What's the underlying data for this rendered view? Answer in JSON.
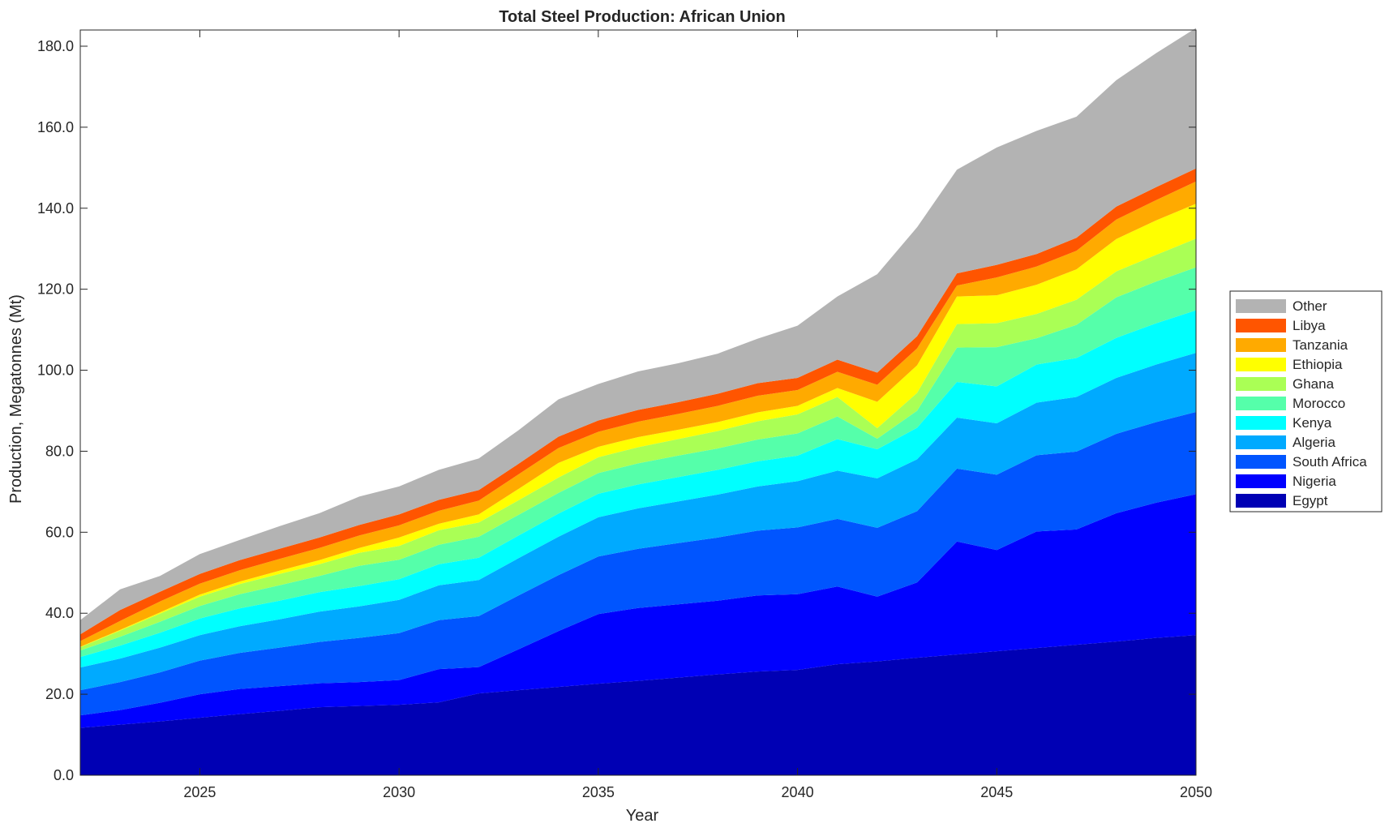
{
  "chart_data": {
    "type": "area",
    "stacked": true,
    "title": "Total Steel Production: African Union",
    "xlabel": "Year",
    "ylabel": "Production, Megatonnes (Mt)",
    "xlim": [
      2022,
      2050
    ],
    "ylim": [
      0,
      184
    ],
    "xticks": [
      2025,
      2030,
      2035,
      2040,
      2045,
      2050
    ],
    "yticks": [
      0,
      20,
      40,
      60,
      80,
      100,
      120,
      140,
      160,
      180
    ],
    "ytick_labels": [
      "0.0",
      "20.0",
      "40.0",
      "60.0",
      "80.0",
      "100.0",
      "120.0",
      "140.0",
      "160.0",
      "180.0"
    ],
    "legend_position": "outside-right",
    "x": [
      2022,
      2023,
      2024,
      2025,
      2026,
      2027,
      2028,
      2029,
      2030,
      2031,
      2032,
      2033,
      2034,
      2035,
      2036,
      2037,
      2038,
      2039,
      2040,
      2041,
      2042,
      2043,
      2044,
      2045,
      2046,
      2047,
      2048,
      2049,
      2050
    ],
    "series": [
      {
        "name": "Egypt",
        "color": "#0000B4",
        "values": [
          11.7,
          12.5,
          13.3,
          14.2,
          15.1,
          15.9,
          16.8,
          17.1,
          17.4,
          18.0,
          20.2,
          21.0,
          21.8,
          22.6,
          23.3,
          24.1,
          24.9,
          25.6,
          26.0,
          27.4,
          28.1,
          29.0,
          29.8,
          30.6,
          31.4,
          32.2,
          33.0,
          33.9,
          34.6
        ]
      },
      {
        "name": "Nigeria",
        "color": "#0000FF",
        "values": [
          3.1,
          3.6,
          4.6,
          5.8,
          6.2,
          6.1,
          5.9,
          5.9,
          6.1,
          8.2,
          6.5,
          10.1,
          13.8,
          17.2,
          18.0,
          18.1,
          18.2,
          18.8,
          18.7,
          19.2,
          16.0,
          18.6,
          27.9,
          25.0,
          28.8,
          28.5,
          31.7,
          33.4,
          34.8
        ]
      },
      {
        "name": "South Africa",
        "color": "#0055FF",
        "values": [
          6.2,
          6.9,
          7.5,
          8.3,
          8.9,
          9.5,
          10.2,
          10.9,
          11.6,
          12.1,
          12.6,
          13.3,
          13.8,
          14.2,
          14.6,
          15.1,
          15.6,
          16.0,
          16.5,
          16.7,
          17.0,
          17.6,
          18.0,
          18.6,
          18.8,
          19.2,
          19.6,
          19.9,
          20.3
        ]
      },
      {
        "name": "Algeria",
        "color": "#00AAFF",
        "values": [
          5.6,
          5.8,
          6.1,
          6.3,
          6.6,
          7.0,
          7.5,
          7.8,
          8.2,
          8.6,
          8.9,
          9.2,
          9.5,
          9.7,
          10.0,
          10.3,
          10.6,
          10.9,
          11.4,
          11.9,
          12.2,
          12.8,
          12.6,
          12.7,
          13.0,
          13.5,
          13.8,
          14.2,
          14.6
        ]
      },
      {
        "name": "Kenya",
        "color": "#00FFFF",
        "values": [
          2.6,
          3.2,
          3.7,
          4.1,
          4.4,
          4.6,
          4.8,
          5.0,
          5.1,
          5.2,
          5.5,
          5.6,
          5.7,
          5.8,
          5.9,
          6.0,
          6.1,
          6.2,
          6.3,
          7.8,
          7.2,
          7.8,
          8.8,
          9.1,
          9.4,
          9.6,
          9.9,
          10.2,
          10.5
        ]
      },
      {
        "name": "Morocco",
        "color": "#55FFAA",
        "values": [
          1.6,
          2.2,
          2.7,
          3.1,
          3.5,
          3.8,
          4.0,
          5.0,
          4.8,
          4.8,
          5.2,
          5.1,
          5.1,
          5.1,
          5.2,
          5.3,
          5.3,
          5.4,
          5.5,
          5.6,
          2.6,
          4.2,
          8.5,
          9.7,
          6.5,
          8.2,
          10.0,
          10.3,
          10.6
        ]
      },
      {
        "name": "Ghana",
        "color": "#AAFF55",
        "values": [
          0.8,
          1.5,
          2.0,
          2.3,
          2.5,
          2.8,
          2.9,
          3.2,
          3.4,
          3.6,
          3.5,
          3.6,
          3.8,
          3.9,
          4.0,
          4.1,
          4.3,
          4.5,
          4.7,
          4.8,
          2.6,
          4.4,
          5.8,
          5.9,
          6.0,
          6.2,
          6.4,
          6.6,
          7.1
        ]
      },
      {
        "name": "Ethiopia",
        "color": "#FFFF00",
        "values": [
          0.1,
          0.2,
          0.3,
          0.5,
          0.6,
          0.8,
          1.0,
          1.2,
          2.1,
          1.6,
          2.0,
          2.8,
          3.6,
          2.6,
          2.5,
          2.3,
          2.2,
          2.2,
          2.1,
          2.2,
          6.5,
          6.8,
          6.8,
          6.9,
          7.2,
          7.5,
          8.0,
          8.5,
          8.6
        ]
      },
      {
        "name": "Tanzania",
        "color": "#FFAA00",
        "values": [
          1.4,
          2.2,
          2.7,
          2.7,
          2.8,
          2.9,
          3.0,
          3.1,
          3.0,
          3.2,
          3.4,
          3.6,
          3.7,
          3.7,
          3.8,
          3.9,
          4.0,
          4.1,
          3.9,
          4.0,
          4.2,
          4.2,
          2.7,
          4.4,
          4.5,
          4.6,
          4.8,
          5.0,
          5.5
        ]
      },
      {
        "name": "Libya",
        "color": "#FF5500",
        "values": [
          1.7,
          2.7,
          2.4,
          2.4,
          2.5,
          2.5,
          2.6,
          2.6,
          2.7,
          2.7,
          2.6,
          2.6,
          2.8,
          2.8,
          2.9,
          2.9,
          3.0,
          3.1,
          3.0,
          3.0,
          3.0,
          3.0,
          3.0,
          3.1,
          3.1,
          3.2,
          3.2,
          3.2,
          3.2
        ]
      },
      {
        "name": "Other",
        "color": "#B3B3B3",
        "values": [
          3.5,
          5.1,
          3.9,
          4.9,
          5.0,
          5.6,
          6.0,
          7.0,
          6.9,
          7.4,
          7.8,
          8.3,
          9.2,
          9.0,
          9.5,
          9.6,
          9.9,
          11.0,
          12.9,
          15.6,
          24.3,
          26.9,
          25.6,
          29.0,
          30.4,
          29.9,
          31.2,
          33.1,
          34.7
        ]
      }
    ]
  }
}
